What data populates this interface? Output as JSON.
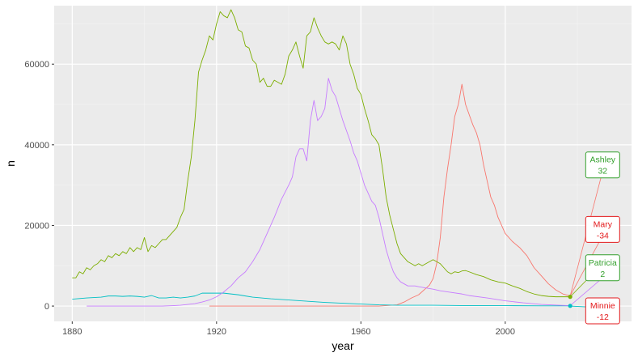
{
  "chart_data": {
    "type": "line",
    "xlabel": "year",
    "ylabel": "n",
    "xlim": [
      1875,
      2035
    ],
    "ylim": [
      -3800,
      74500
    ],
    "x_ticks": [
      1880,
      1920,
      1960,
      2000
    ],
    "y_ticks": [
      0,
      20000,
      40000,
      60000
    ],
    "y_tick_labels": [
      "0",
      "20000",
      "40000",
      "60000"
    ],
    "grid": true,
    "legend": "none",
    "background": "#ebebeb",
    "series": [
      {
        "key": "red",
        "color": "#f8766d",
        "x": [
          1918,
          1930,
          1950,
          1965,
          1970,
          1972,
          1974,
          1976,
          1978,
          1979,
          1980,
          1981,
          1982,
          1983,
          1984,
          1985,
          1986,
          1987,
          1988,
          1989,
          1990,
          1991,
          1992,
          1993,
          1994,
          1995,
          1996,
          1997,
          1998,
          2000,
          2002,
          2004,
          2006,
          2008,
          2010,
          2012,
          2014,
          2016,
          2018
        ],
        "values": [
          0,
          0,
          0,
          0,
          300,
          1000,
          2000,
          2800,
          4400,
          5200,
          6800,
          10500,
          17000,
          27000,
          34000,
          40000,
          47000,
          50000,
          55000,
          50000,
          47500,
          45000,
          43000,
          40000,
          35000,
          31000,
          27000,
          25000,
          22000,
          18000,
          16000,
          14500,
          12500,
          9500,
          7500,
          5500,
          4000,
          3000,
          2500
        ]
      },
      {
        "key": "olive",
        "color": "#7cae00",
        "x": [
          1880,
          1881,
          1882,
          1883,
          1884,
          1885,
          1886,
          1887,
          1888,
          1889,
          1890,
          1891,
          1892,
          1893,
          1894,
          1895,
          1896,
          1897,
          1898,
          1899,
          1900,
          1901,
          1902,
          1903,
          1904,
          1905,
          1906,
          1907,
          1908,
          1909,
          1910,
          1911,
          1912,
          1913,
          1914,
          1915,
          1916,
          1917,
          1918,
          1919,
          1920,
          1921,
          1922,
          1923,
          1924,
          1925,
          1926,
          1927,
          1928,
          1929,
          1930,
          1931,
          1932,
          1933,
          1934,
          1935,
          1936,
          1937,
          1938,
          1939,
          1940,
          1941,
          1942,
          1943,
          1944,
          1945,
          1946,
          1947,
          1948,
          1949,
          1950,
          1951,
          1952,
          1953,
          1954,
          1955,
          1956,
          1957,
          1958,
          1959,
          1960,
          1961,
          1962,
          1963,
          1964,
          1965,
          1966,
          1967,
          1968,
          1969,
          1970,
          1971,
          1972,
          1973,
          1974,
          1975,
          1976,
          1977,
          1978,
          1979,
          1980,
          1981,
          1982,
          1983,
          1984,
          1985,
          1986,
          1987,
          1988,
          1989,
          1990,
          1992,
          1994,
          1996,
          1998,
          2000,
          2002,
          2004,
          2006,
          2008,
          2010,
          2012,
          2014,
          2016,
          2018
        ],
        "values": [
          7000,
          7000,
          8500,
          8000,
          9500,
          9000,
          10000,
          10500,
          11500,
          11000,
          12500,
          12000,
          13000,
          12500,
          13500,
          13000,
          14500,
          13500,
          14500,
          14000,
          17000,
          13500,
          15000,
          14500,
          15500,
          16500,
          16500,
          17500,
          18500,
          19500,
          22000,
          24000,
          31000,
          37000,
          46000,
          58000,
          61000,
          63500,
          67000,
          66000,
          70000,
          73000,
          72000,
          71500,
          73500,
          71500,
          68500,
          68000,
          64500,
          64000,
          61000,
          60000,
          55500,
          56500,
          54500,
          54500,
          56000,
          55500,
          55000,
          57500,
          62000,
          63500,
          65500,
          62000,
          59000,
          67000,
          68000,
          71500,
          69000,
          67000,
          65500,
          65000,
          65500,
          65000,
          63500,
          67000,
          65000,
          60000,
          57500,
          54000,
          52500,
          49000,
          46000,
          42500,
          41500,
          40000,
          34000,
          27000,
          22500,
          19000,
          15500,
          13000,
          12000,
          11000,
          10500,
          10000,
          10500,
          10000,
          10500,
          11000,
          11500,
          11000,
          10500,
          9500,
          8500,
          8000,
          8500,
          8300,
          8700,
          8800,
          8500,
          7800,
          7300,
          6500,
          6000,
          5700,
          5000,
          4400,
          3600,
          3000,
          2600,
          2400,
          2300,
          2300,
          2300
        ]
      },
      {
        "key": "teal",
        "color": "#00bfc4",
        "x": [
          1880,
          1884,
          1886,
          1888,
          1890,
          1892,
          1894,
          1896,
          1898,
          1900,
          1902,
          1904,
          1906,
          1908,
          1910,
          1912,
          1914,
          1916,
          1918,
          1920,
          1922,
          1924,
          1926,
          1928,
          1930,
          1935,
          1940,
          1945,
          1950,
          1955,
          1960,
          1965,
          1970,
          1980,
          1990,
          2000,
          2010,
          2018
        ],
        "values": [
          1700,
          2000,
          2100,
          2200,
          2500,
          2500,
          2400,
          2500,
          2400,
          2200,
          2600,
          2000,
          2000,
          2200,
          2000,
          2200,
          2500,
          3200,
          3200,
          3200,
          3200,
          3000,
          2800,
          2500,
          2200,
          1800,
          1500,
          1200,
          900,
          700,
          500,
          300,
          200,
          200,
          100,
          100,
          50,
          50
        ]
      },
      {
        "key": "purple",
        "color": "#c77cff",
        "x": [
          1884,
          1890,
          1900,
          1905,
          1908,
          1910,
          1912,
          1914,
          1916,
          1918,
          1920,
          1922,
          1924,
          1926,
          1928,
          1930,
          1932,
          1934,
          1936,
          1938,
          1940,
          1941,
          1942,
          1943,
          1944,
          1945,
          1946,
          1947,
          1948,
          1949,
          1950,
          1951,
          1952,
          1953,
          1954,
          1955,
          1956,
          1957,
          1958,
          1959,
          1960,
          1961,
          1962,
          1963,
          1964,
          1965,
          1966,
          1967,
          1968,
          1969,
          1970,
          1971,
          1972,
          1973,
          1974,
          1975,
          1976,
          1978,
          1980,
          1982,
          1985,
          1988,
          1990,
          1995,
          2000,
          2005,
          2010,
          2015,
          2018
        ],
        "values": [
          0,
          0,
          0,
          0,
          100,
          200,
          400,
          600,
          1000,
          1500,
          2300,
          3500,
          5000,
          7000,
          8500,
          11000,
          14000,
          18000,
          22000,
          26500,
          30000,
          32000,
          37000,
          39000,
          39000,
          36000,
          46000,
          51000,
          46000,
          47000,
          49000,
          56500,
          53500,
          52000,
          49000,
          46000,
          43500,
          41000,
          38000,
          36000,
          33000,
          30000,
          28000,
          26000,
          25000,
          22000,
          18000,
          14000,
          11000,
          8500,
          7000,
          6000,
          5500,
          5000,
          5000,
          5000,
          4800,
          4500,
          4200,
          3800,
          3400,
          3000,
          2600,
          2000,
          1300,
          800,
          400,
          200,
          100
        ]
      }
    ],
    "annotations": [
      {
        "label_name": "Ashley",
        "label_value": "32",
        "color": "#33a02c",
        "anchor_x": 2018,
        "anchor_y": 2300,
        "box_x": 2027,
        "box_y": 35000
      },
      {
        "label_name": "Mary",
        "label_value": "-34",
        "color": "#e31a1c",
        "anchor_x": 2018,
        "anchor_y": 2500,
        "box_x": 2027,
        "box_y": 19000
      },
      {
        "label_name": "Patricia",
        "label_value": "2",
        "color": "#33a02c",
        "anchor_x": 2018,
        "anchor_y": 2400,
        "box_x": 2027,
        "box_y": 9500
      },
      {
        "label_name": "Minnie",
        "label_value": "-12",
        "color": "#e31a1c",
        "anchor_x": 2018,
        "anchor_y": 0,
        "box_x": 2027,
        "box_y": -1200
      }
    ],
    "annotation_leaders": [
      {
        "color": "#f8766d",
        "x": [
          2018,
          2027
        ],
        "y": [
          2500,
          33500
        ]
      },
      {
        "color": "#f8766d",
        "x": [
          2018,
          2027
        ],
        "y": [
          2500,
          17500
        ]
      },
      {
        "color": "#7cae00",
        "x": [
          2018,
          2027
        ],
        "y": [
          2300,
          10500
        ]
      },
      {
        "color": "#c77cff",
        "x": [
          2018,
          2027
        ],
        "y": [
          100,
          7000
        ]
      },
      {
        "color": "#00bfc4",
        "x": [
          2018,
          2027
        ],
        "y": [
          0,
          -400
        ]
      }
    ],
    "endpoints": [
      {
        "color": "#7cae00",
        "x": 2018,
        "y": 2300
      },
      {
        "color": "#00bfc4",
        "x": 2018,
        "y": 50
      }
    ]
  }
}
